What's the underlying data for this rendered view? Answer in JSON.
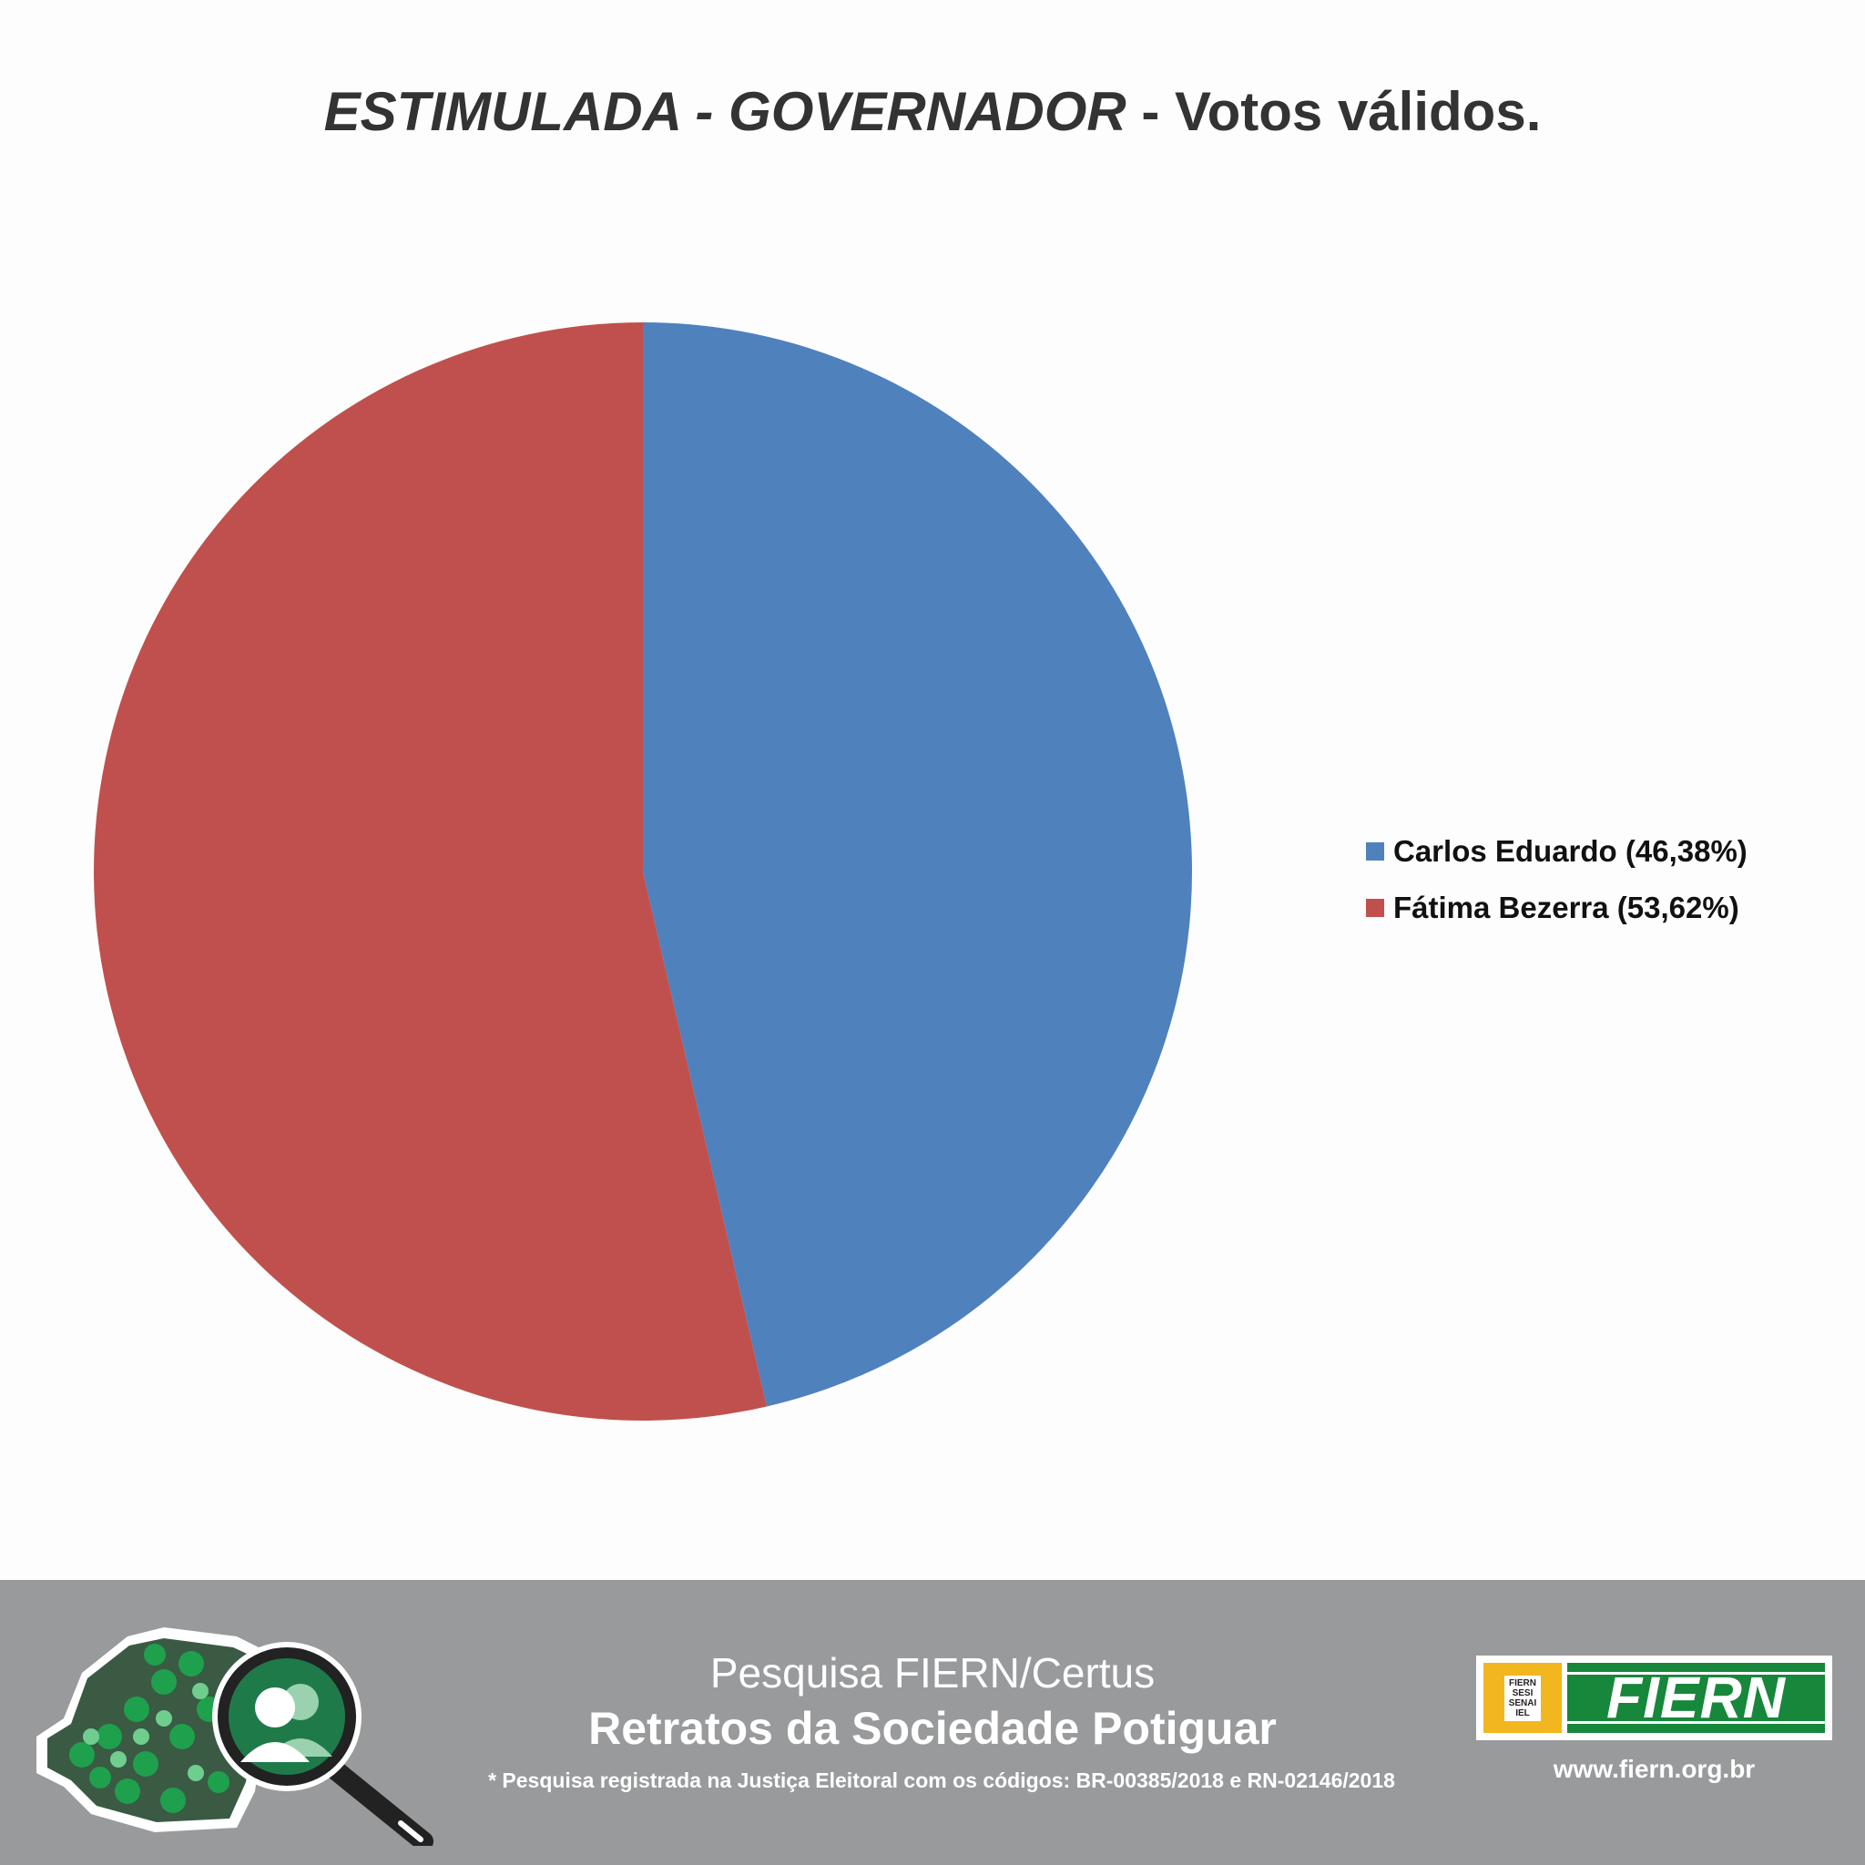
{
  "title": {
    "part1": "ESTIMULADA - GOVERNADOR",
    "part2": " - Votos válidos."
  },
  "chart_data": {
    "type": "pie",
    "title": "ESTIMULADA - GOVERNADOR - Votos válidos.",
    "legend_position": "right",
    "series": [
      {
        "name": "Carlos Eduardo",
        "label": "Carlos Eduardo (46,38%)",
        "value": 46.38,
        "color": "#4f81bd"
      },
      {
        "name": "Fátima Bezerra",
        "label": "Fátima Bezerra (53,62%)",
        "value": 53.62,
        "color": "#c0504d"
      }
    ]
  },
  "footer": {
    "survey": "Pesquisa FIERN/Certus",
    "title": "Retratos da Sociedade Potiguar",
    "note": "* Pesquisa registrada na Justiça Eleitoral com os códigos: BR-00385/2018 e RN-02146/2018",
    "logo_small": [
      "FIERN",
      "SESI",
      "SENAI",
      "IEL"
    ],
    "logo_word": "FIERN",
    "url": "www.fiern.org.br",
    "colors": {
      "background": "#999a9c",
      "green": "#17873b",
      "yellow": "#f2b61f"
    }
  }
}
